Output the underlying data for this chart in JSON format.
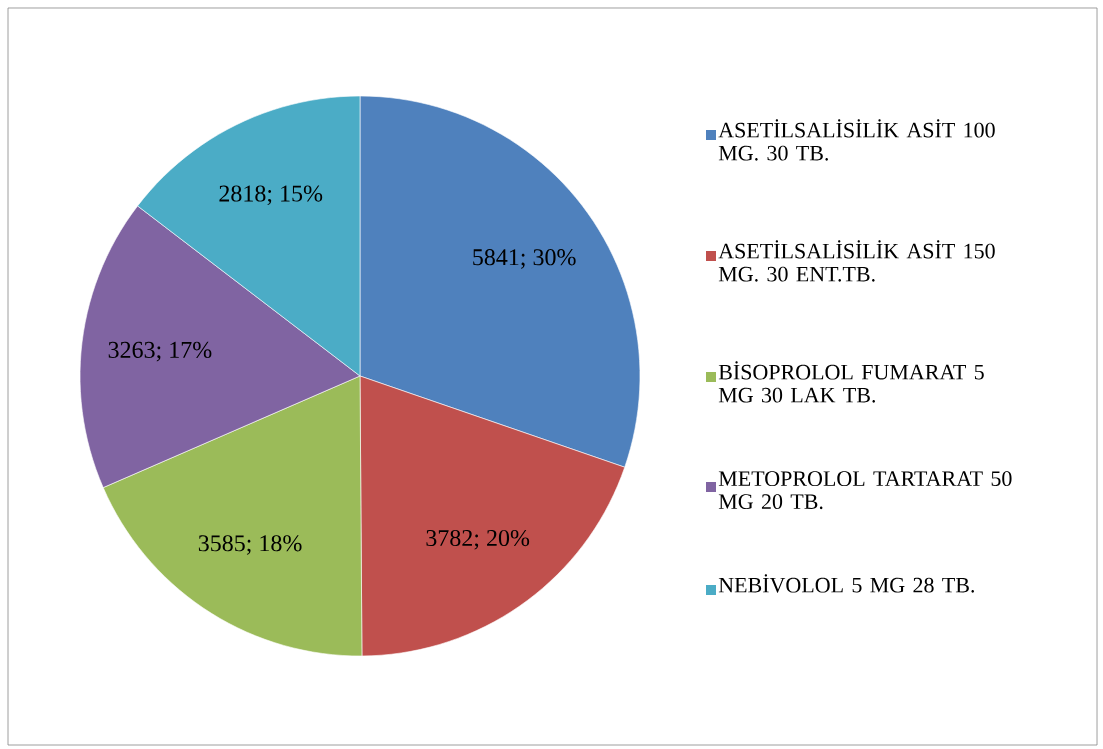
{
  "chart_data": {
    "type": "pie",
    "categories": [
      "ASETİLSALİSİLİK ASİT 100 MG. 30 TB.",
      "ASETİLSALİSİLİK ASİT 150 MG. 30 ENT.TB.",
      "BİSOPROLOL FUMARAT 5 MG 30 LAK TB.",
      "METOPROLOL TARTARAT 50 MG 20 TB.",
      "NEBİVOLOL 5 MG 28 TB."
    ],
    "values": [
      5841,
      3782,
      3585,
      3263,
      2818
    ],
    "colors": [
      "#4f81bd",
      "#c0504d",
      "#9bbb59",
      "#8064a2",
      "#4bacc6"
    ],
    "value_labels": [
      "5841; 30%",
      "3782; 20%",
      "3585; 18%",
      "3263; 17%",
      "2818; 15%"
    ],
    "legend": "right"
  }
}
